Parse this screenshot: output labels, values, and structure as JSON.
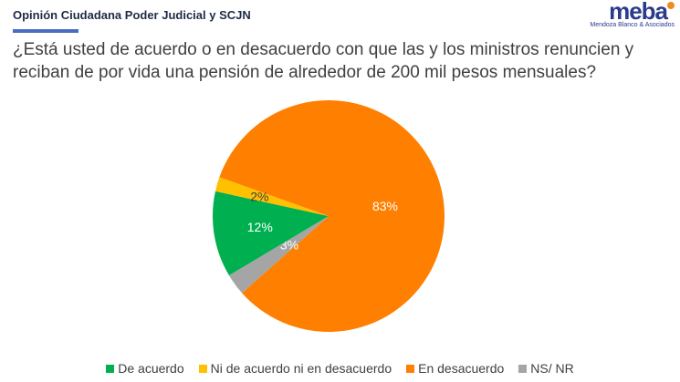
{
  "header": {
    "title": "Opinión Ciudadana Poder Judicial y SCJN"
  },
  "logo": {
    "name": "meba",
    "tagline": "Mendoza Blanco & Asociados"
  },
  "chart_data": {
    "type": "pie",
    "title": "¿Está usted de acuerdo o en desacuerdo con que las y los ministros renuncien y reciban de por vida una pensión de alrededor de 200 mil pesos mensuales?",
    "legend_position": "bottom",
    "slices": [
      {
        "name": "De acuerdo",
        "value": 12,
        "label": "12%",
        "color": "#00b050",
        "label_color": "#ffffff"
      },
      {
        "name": "Ni de acuerdo ni en desacuerdo",
        "value": 2,
        "label": "2%",
        "color": "#ffc000",
        "label_color": "#404040"
      },
      {
        "name": "En desacuerdo",
        "value": 83,
        "label": "83%",
        "color": "#ff8000",
        "label_color": "#ffffff"
      },
      {
        "name": "NS/ NR",
        "value": 3,
        "label": "3%",
        "color": "#a5a5a5",
        "label_color": "#ffffff"
      }
    ]
  }
}
